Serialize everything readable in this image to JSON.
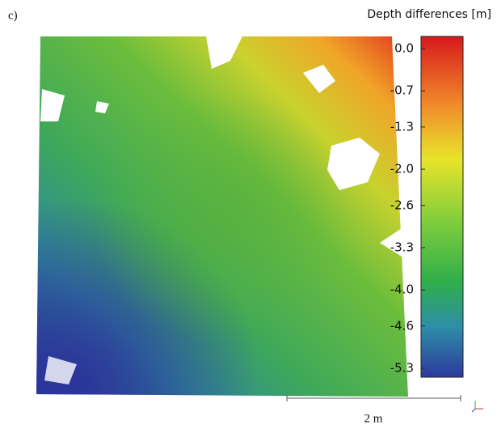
{
  "panel_label": "c)",
  "colorbar": {
    "title": "Depth differences [m]",
    "range": [
      -5.3,
      0
    ],
    "ticks": [
      {
        "value": 0,
        "label": "0.0"
      },
      {
        "value": -0.7,
        "label": "-0.7"
      },
      {
        "value": -1.3,
        "label": "-1.3"
      },
      {
        "value": -2,
        "label": "-2.0"
      },
      {
        "value": -2.6,
        "label": "-2.6"
      },
      {
        "value": -3.3,
        "label": "-3.3"
      },
      {
        "value": -4,
        "label": "-4.0"
      },
      {
        "value": -4.6,
        "label": "-4.6"
      },
      {
        "value": -5.3,
        "label": "-5.3"
      }
    ]
  },
  "scale_bar": {
    "label": "2 m"
  }
}
